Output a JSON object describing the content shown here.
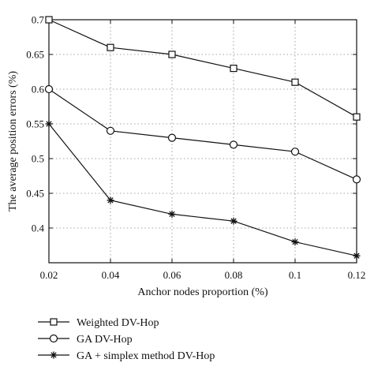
{
  "chart_data": {
    "type": "line",
    "title": "",
    "xlabel": "Anchor nodes proportion (%)",
    "ylabel": "The average position errors (%)",
    "x": [
      0.02,
      0.04,
      0.06,
      0.08,
      0.1,
      0.12
    ],
    "xticks": [
      "0.02",
      "0.04",
      "0.06",
      "0.08",
      "0.1",
      "0.12"
    ],
    "yticks": [
      "0.4",
      "0.45",
      "0.5",
      "0.55",
      "0.6",
      "0.65",
      "0.7"
    ],
    "xlim": [
      0.02,
      0.12
    ],
    "ylim": [
      0.35,
      0.7
    ],
    "grid": true,
    "legend_position": "below",
    "series": [
      {
        "name": "Weighted DV-Hop",
        "marker": "square",
        "values": [
          0.7,
          0.66,
          0.65,
          0.63,
          0.61,
          0.56
        ]
      },
      {
        "name": "GA DV-Hop",
        "marker": "circle",
        "values": [
          0.6,
          0.54,
          0.53,
          0.52,
          0.51,
          0.47
        ]
      },
      {
        "name": "GA + simplex method DV-Hop",
        "marker": "star",
        "values": [
          0.55,
          0.44,
          0.42,
          0.41,
          0.38,
          0.36
        ]
      }
    ]
  }
}
